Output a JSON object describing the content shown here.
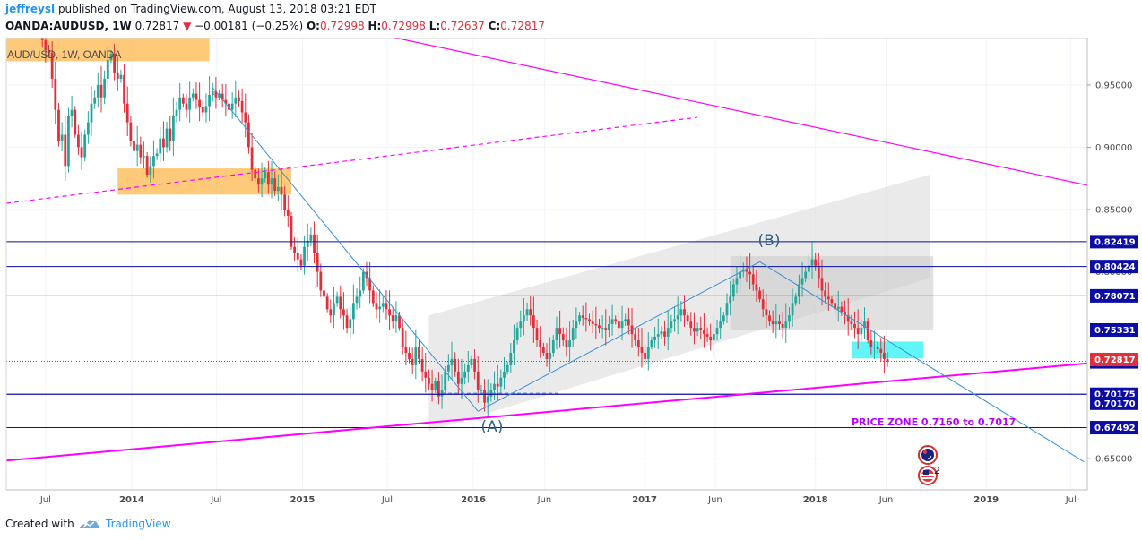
{
  "header": {
    "author": "jeffreysl",
    "published_text": "published on TradingView.com, August 13, 2018 03:21 EDT",
    "symbol": "OANDA:AUDUSD, 1W",
    "last": "0.72817",
    "change_arrow": "▼",
    "change": "−0.00181 (−0.25%)",
    "open_label": "O:",
    "open": "0.72998",
    "high_label": "H:",
    "high": "0.72998",
    "low_label": "L:",
    "low": "0.72637",
    "close_label": "C:",
    "close": "0.72817"
  },
  "footer": {
    "created_with": "Created with",
    "brand": "TradingView",
    "logo_icon": "tradingview-logo-icon"
  },
  "colors": {
    "up": "#26a69a",
    "down": "#e0303a",
    "level": "#0c0ca6",
    "magenta": "#ff00ff",
    "blue_line": "#3c8fd6",
    "orange_zone": "#ffb74d",
    "cyan_zone": "#4ff5f7",
    "price_zone_text": "#b800ff"
  },
  "chart_data": {
    "type": "candlestick",
    "title": "AUD/USD, 1W, OANDA",
    "timeframe": "1W",
    "x_ticks": [
      "Jul",
      "2014",
      "Jul",
      "2015",
      "Jul",
      "2016",
      "Jun",
      "2017",
      "Jun",
      "2018",
      "Jun",
      "2019",
      "Jul"
    ],
    "x_tick_dates": [
      "2013-07-01",
      "2014-01-01",
      "2014-07-01",
      "2015-01-01",
      "2015-07-01",
      "2016-01-01",
      "2016-06-01",
      "2017-01-01",
      "2017-06-01",
      "2018-01-01",
      "2018-06-01",
      "2019-01-01",
      "2019-07-01"
    ],
    "x_range": [
      "2013-04-08",
      "2019-08-05"
    ],
    "y_ticks": [
      "0.95000",
      "0.90000",
      "0.85000",
      "0.65000"
    ],
    "y_range": [
      0.625,
      0.988
    ],
    "price_levels": [
      "0.82419",
      "0.80424",
      "0.78071",
      "0.75331",
      "0.72772",
      "0.70175",
      "0.70170",
      "0.67492"
    ],
    "partial_ticks": [
      "0.80000"
    ],
    "last_price": "0.72817",
    "annotations": {
      "wave_b": "(B)",
      "wave_a": "(A)",
      "price_zone": "PRICE ZONE 0.7160 to 0.7017",
      "event_badge_count": "2",
      "event_icons": [
        "australia-flag-icon",
        "usa-flag-icon"
      ]
    },
    "weekly_closes": [
      0.993,
      0.986,
      0.978,
      0.976,
      0.955,
      0.93,
      0.905,
      0.91,
      0.885,
      0.925,
      0.93,
      0.91,
      0.9,
      0.892,
      0.91,
      0.92,
      0.935,
      0.94,
      0.95,
      0.94,
      0.955,
      0.97,
      0.975,
      0.96,
      0.955,
      0.958,
      0.935,
      0.92,
      0.905,
      0.897,
      0.902,
      0.892,
      0.893,
      0.878,
      0.885,
      0.893,
      0.895,
      0.907,
      0.9,
      0.915,
      0.905,
      0.925,
      0.93,
      0.94,
      0.935,
      0.93,
      0.94,
      0.943,
      0.938,
      0.932,
      0.928,
      0.933,
      0.942,
      0.945,
      0.94,
      0.943,
      0.938,
      0.935,
      0.93,
      0.935,
      0.94,
      0.937,
      0.928,
      0.92,
      0.9,
      0.882,
      0.875,
      0.87,
      0.875,
      0.88,
      0.87,
      0.875,
      0.865,
      0.868,
      0.862,
      0.85,
      0.845,
      0.82,
      0.815,
      0.81,
      0.805,
      0.82,
      0.825,
      0.83,
      0.815,
      0.8,
      0.785,
      0.78,
      0.77,
      0.765,
      0.775,
      0.78,
      0.77,
      0.765,
      0.755,
      0.762,
      0.775,
      0.78,
      0.785,
      0.8,
      0.795,
      0.785,
      0.775,
      0.77,
      0.772,
      0.775,
      0.77,
      0.765,
      0.76,
      0.765,
      0.755,
      0.74,
      0.735,
      0.73,
      0.725,
      0.74,
      0.73,
      0.72,
      0.715,
      0.71,
      0.705,
      0.712,
      0.7,
      0.705,
      0.72,
      0.725,
      0.73,
      0.72,
      0.71,
      0.715,
      0.72,
      0.725,
      0.73,
      0.72,
      0.705,
      0.705,
      0.695,
      0.7,
      0.705,
      0.71,
      0.708,
      0.715,
      0.72,
      0.725,
      0.735,
      0.745,
      0.755,
      0.76,
      0.765,
      0.77,
      0.765,
      0.755,
      0.745,
      0.74,
      0.735,
      0.73,
      0.735,
      0.745,
      0.755,
      0.75,
      0.745,
      0.74,
      0.745,
      0.755,
      0.76,
      0.765,
      0.763,
      0.762,
      0.76,
      0.758,
      0.757,
      0.755,
      0.755,
      0.753,
      0.758,
      0.762,
      0.76,
      0.755,
      0.76,
      0.762,
      0.757,
      0.75,
      0.745,
      0.74,
      0.735,
      0.73,
      0.74,
      0.745,
      0.748,
      0.75,
      0.752,
      0.748,
      0.755,
      0.76,
      0.762,
      0.765,
      0.77,
      0.765,
      0.76,
      0.755,
      0.752,
      0.755,
      0.753,
      0.75,
      0.748,
      0.745,
      0.75,
      0.755,
      0.76,
      0.765,
      0.775,
      0.78,
      0.79,
      0.795,
      0.8,
      0.802,
      0.8,
      0.798,
      0.79,
      0.785,
      0.778,
      0.77,
      0.765,
      0.76,
      0.758,
      0.76,
      0.758,
      0.755,
      0.76,
      0.765,
      0.775,
      0.78,
      0.79,
      0.795,
      0.8,
      0.805,
      0.81,
      0.805,
      0.795,
      0.785,
      0.78,
      0.778,
      0.775,
      0.77,
      0.772,
      0.768,
      0.765,
      0.76,
      0.758,
      0.755,
      0.75,
      0.755,
      0.76,
      0.745,
      0.74,
      0.74,
      0.738,
      0.735,
      0.73,
      0.728
    ]
  }
}
